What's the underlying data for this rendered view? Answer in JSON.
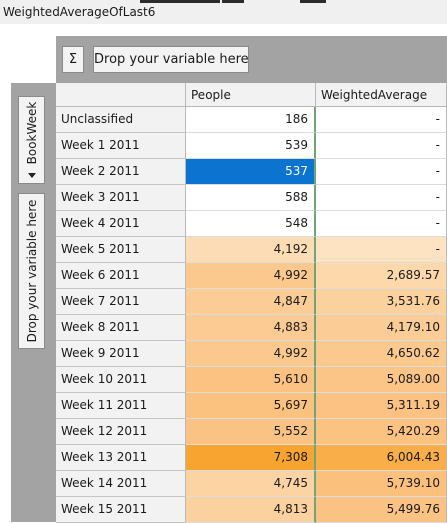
{
  "window": {
    "title": "WeightedAverageOfLast6"
  },
  "toolbar": {
    "sigma_label": "Σ",
    "column_drop_label": "Drop your variable here"
  },
  "row_area": {
    "field_label": "BookWeek",
    "drop_label": "Drop your variable here"
  },
  "table": {
    "headers": [
      "People",
      "WeightedAverage"
    ],
    "rows": [
      {
        "label": "Unclassified",
        "people": "186",
        "weighted": "-",
        "people_bg": "#ffffff",
        "weighted_bg": "#ffffff"
      },
      {
        "label": "Week 1 2011",
        "people": "539",
        "weighted": "-",
        "people_bg": "#ffffff",
        "weighted_bg": "#ffffff"
      },
      {
        "label": "Week 2 2011",
        "people": "537",
        "weighted": "-",
        "people_bg": "#ffffff",
        "weighted_bg": "#ffffff",
        "selected": true
      },
      {
        "label": "Week 3 2011",
        "people": "588",
        "weighted": "-",
        "people_bg": "#ffffff",
        "weighted_bg": "#ffffff"
      },
      {
        "label": "Week 4 2011",
        "people": "548",
        "weighted": "-",
        "people_bg": "#ffffff",
        "weighted_bg": "#ffffff"
      },
      {
        "label": "Week 5 2011",
        "people": "4,192",
        "weighted": "-",
        "people_bg": "#fcdcb4",
        "weighted_bg": "#fde3c2"
      },
      {
        "label": "Week 6 2011",
        "people": "4,992",
        "weighted": "2,689.57",
        "people_bg": "#fbc98e",
        "weighted_bg": "#fcd8ab"
      },
      {
        "label": "Week 7 2011",
        "people": "4,847",
        "weighted": "3,531.76",
        "people_bg": "#fbcc95",
        "weighted_bg": "#fbd19e"
      },
      {
        "label": "Week 8 2011",
        "people": "4,883",
        "weighted": "4,179.10",
        "people_bg": "#fbcb93",
        "weighted_bg": "#fbcc95"
      },
      {
        "label": "Week 9 2011",
        "people": "4,992",
        "weighted": "4,650.62",
        "people_bg": "#fbc98e",
        "weighted_bg": "#fbc98e"
      },
      {
        "label": "Week 10 2011",
        "people": "5,610",
        "weighted": "5,089.00",
        "people_bg": "#fbc281",
        "weighted_bg": "#fbc587"
      },
      {
        "label": "Week 11 2011",
        "people": "5,697",
        "weighted": "5,311.19",
        "people_bg": "#fbc17e",
        "weighted_bg": "#fbc283"
      },
      {
        "label": "Week 12 2011",
        "people": "5,552",
        "weighted": "5,420.29",
        "people_bg": "#fbc383",
        "weighted_bg": "#fbc282"
      },
      {
        "label": "Week 13 2011",
        "people": "7,308",
        "weighted": "6,004.43",
        "people_bg": "#f8a430",
        "weighted_bg": "#f9ae49"
      },
      {
        "label": "Week 14 2011",
        "people": "4,745",
        "weighted": "5,739.10",
        "people_bg": "#fcd4a3",
        "weighted_bg": "#fbc07b"
      },
      {
        "label": "Week 15 2011",
        "people": "4,813",
        "weighted": "5,499.76",
        "people_bg": "#fcd1a0",
        "weighted_bg": "#fbc383"
      }
    ]
  }
}
